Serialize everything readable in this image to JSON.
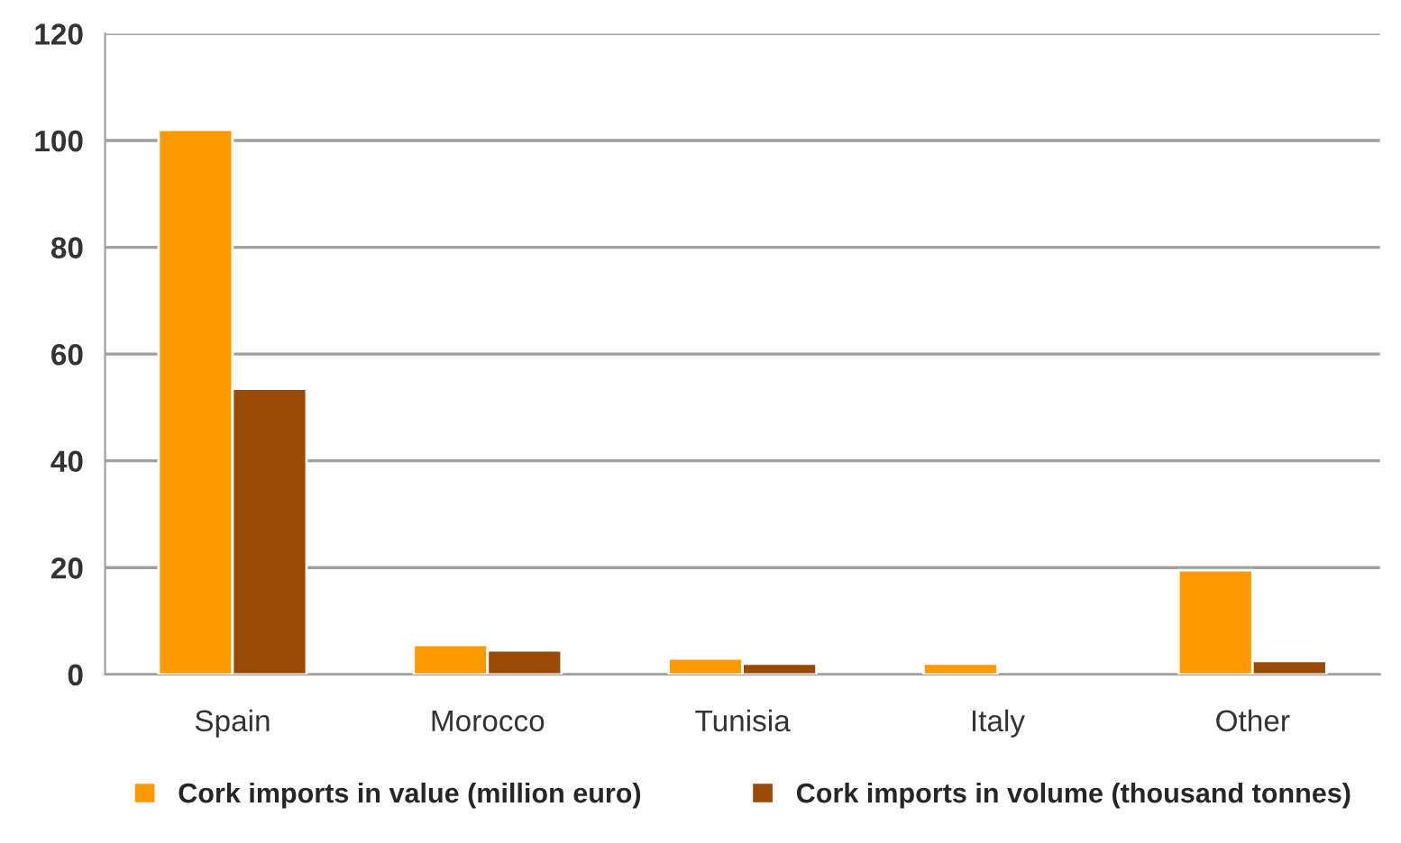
{
  "chart_data": {
    "type": "bar",
    "categories": [
      "Spain",
      "Morocco",
      "Tunisia",
      "Italy",
      "Other"
    ],
    "series": [
      {
        "name": "Cork imports in value (million euro)",
        "color": "#ff9900",
        "values": [
          102,
          5.5,
          3,
          2,
          19.5
        ]
      },
      {
        "name": "Cork imports in volume (thousand tonnes)",
        "color": "#994a06",
        "values": [
          53.5,
          4.5,
          2,
          null,
          2.5
        ]
      }
    ],
    "ylim": [
      0,
      120
    ],
    "yticks": [
      0,
      20,
      40,
      60,
      80,
      100,
      120
    ],
    "grid": "y",
    "legend": "bottom"
  }
}
